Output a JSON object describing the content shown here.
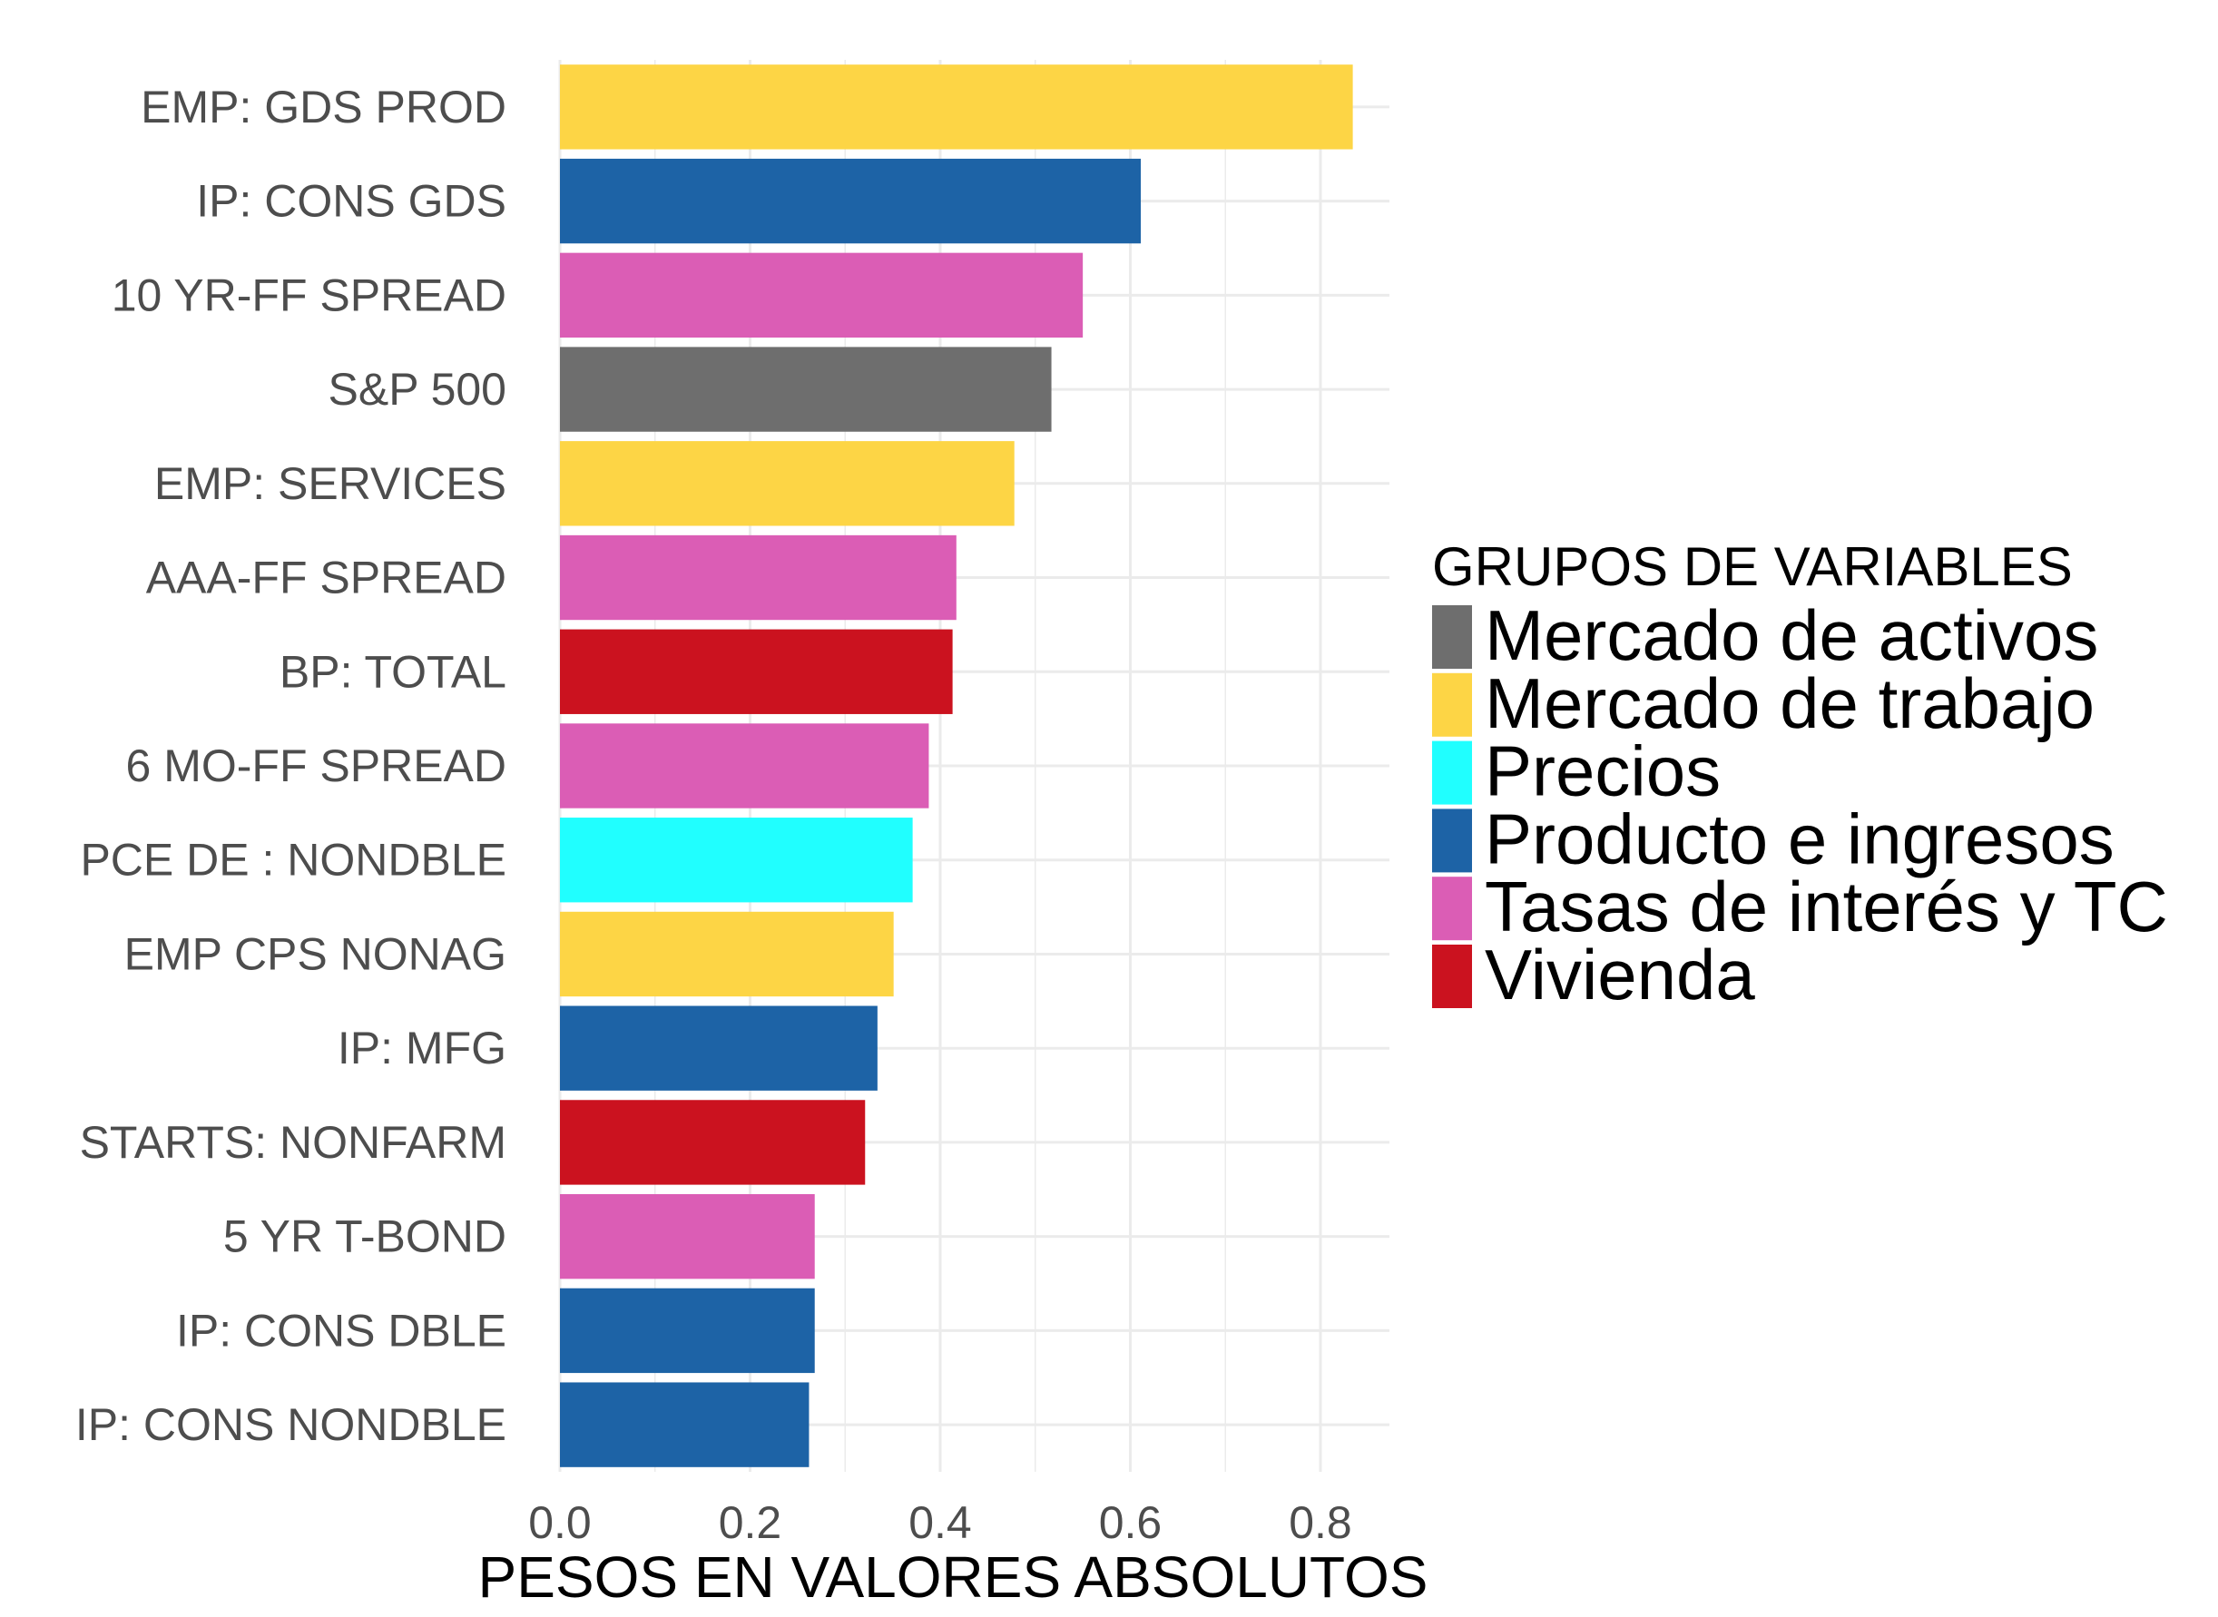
{
  "chart_data": {
    "type": "bar",
    "orientation": "horizontal",
    "xlabel": "PESOS EN VALORES ABSOLUTOS",
    "ylabel": "",
    "xlim": [
      0,
      0.875
    ],
    "xticks": [
      0.0,
      0.2,
      0.4,
      0.6,
      0.8
    ],
    "xtick_labels": [
      "0.0",
      "0.2",
      "0.4",
      "0.6",
      "0.8"
    ],
    "grid": true,
    "legend_position": "right",
    "legend": {
      "title": "GRUPOS DE VARIABLES",
      "items": [
        {
          "key": "activos",
          "label": "Mercado de activos",
          "color": "#6e6e6e"
        },
        {
          "key": "trabajo",
          "label": "Mercado de trabajo",
          "color": "#fdd545"
        },
        {
          "key": "precios",
          "label": "Precios",
          "color": "#20ffff"
        },
        {
          "key": "producto",
          "label": "Producto e ingresos",
          "color": "#1d63a6"
        },
        {
          "key": "tasas",
          "label": "Tasas de interés y TC",
          "color": "#db5db5"
        },
        {
          "key": "vivienda",
          "label": "Vivienda",
          "color": "#cb121f"
        }
      ]
    },
    "categories": [
      "EMP: GDS PROD",
      "IP: CONS GDS",
      "10 YR-FF SPREAD",
      "S&P 500",
      "EMP: SERVICES",
      "AAA-FF SPREAD",
      "BP: TOTAL",
      "6 MO-FF SPREAD",
      "PCE DE : NONDBLE",
      "EMP CPS NONAG",
      "IP: MFG",
      "STARTS: NONFARM",
      "5 YR T-BOND",
      "IP: CONS DBLE",
      "IP: CONS NONDBLE"
    ],
    "values": [
      0.834,
      0.611,
      0.55,
      0.517,
      0.478,
      0.417,
      0.413,
      0.388,
      0.371,
      0.351,
      0.334,
      0.321,
      0.268,
      0.268,
      0.262
    ],
    "groups": [
      "trabajo",
      "producto",
      "tasas",
      "activos",
      "trabajo",
      "tasas",
      "vivienda",
      "tasas",
      "precios",
      "trabajo",
      "producto",
      "vivienda",
      "tasas",
      "producto",
      "producto"
    ]
  }
}
